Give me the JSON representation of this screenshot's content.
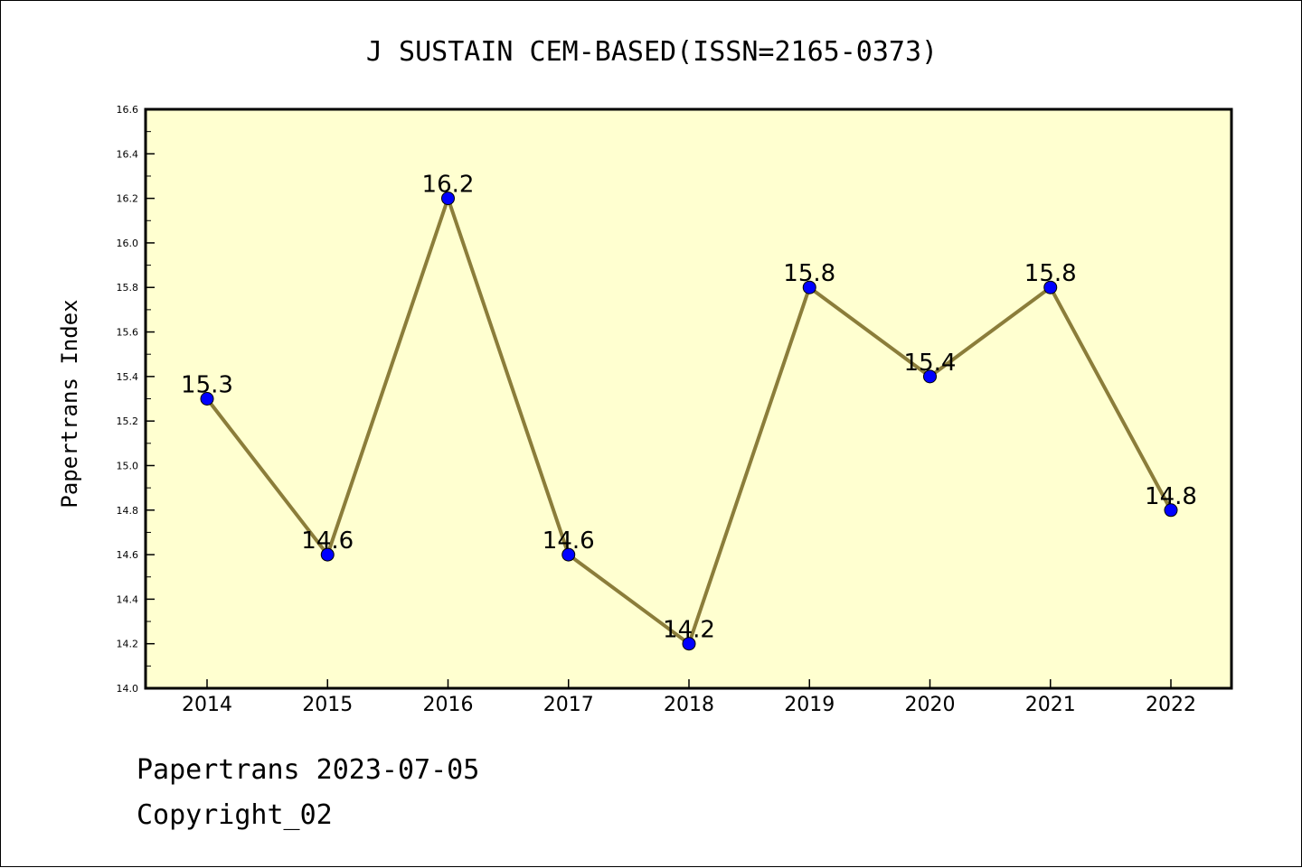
{
  "chart_data": {
    "type": "line",
    "title": "J SUSTAIN CEM-BASED(ISSN=2165-0373)",
    "xlabel": "",
    "ylabel": "Papertrans Index",
    "categories": [
      "2014",
      "2015",
      "2016",
      "2017",
      "2018",
      "2019",
      "2020",
      "2021",
      "2022"
    ],
    "values": [
      15.3,
      14.6,
      16.2,
      14.6,
      14.2,
      15.8,
      15.4,
      15.8,
      14.8
    ],
    "data_labels": [
      "15.3",
      "14.6",
      "16.2",
      "14.6",
      "14.2",
      "15.8",
      "15.4",
      "15.8",
      "14.8"
    ],
    "ylim": [
      14.0,
      16.6
    ],
    "yticks": [
      "14.0",
      "14.2",
      "14.4",
      "14.6",
      "14.8",
      "15.0",
      "15.2",
      "15.4",
      "15.6",
      "15.8",
      "16.0",
      "16.2",
      "16.4",
      "16.6"
    ],
    "grid": false,
    "legend": "none",
    "colors": {
      "plot_background": "#ffffd0",
      "line": "#8b7d3a",
      "marker": "#0000ff",
      "marker_edge": "#000000"
    }
  },
  "footer": {
    "source_line": "Papertrans 2023-07-05",
    "copyright": "Copyright_02"
  }
}
